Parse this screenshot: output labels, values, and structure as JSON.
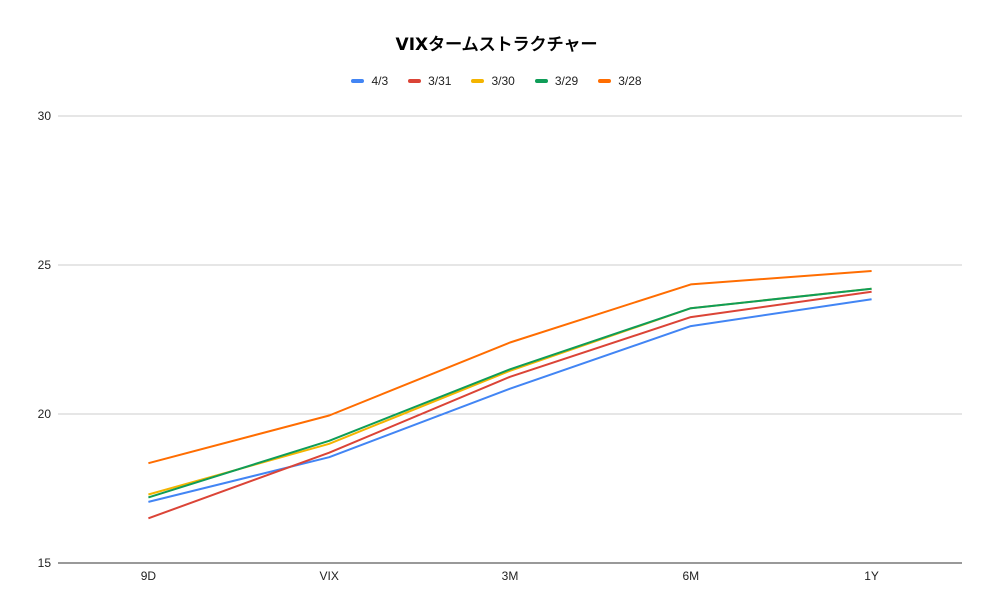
{
  "chart_data": {
    "type": "line",
    "title": "VIXタームストラクチャー",
    "categories": [
      "9D",
      "VIX",
      "3M",
      "6M",
      "1Y"
    ],
    "ylim": [
      15,
      30
    ],
    "yticks": [
      "15",
      "20",
      "25",
      "30"
    ],
    "grid": true,
    "legend_position": "top-center",
    "series": [
      {
        "name": "4/3",
        "color": "#4285f4",
        "values": [
          17.05,
          18.55,
          20.85,
          22.95,
          23.85
        ]
      },
      {
        "name": "3/31",
        "color": "#db4437",
        "values": [
          16.5,
          18.7,
          21.25,
          23.25,
          24.1
        ]
      },
      {
        "name": "3/30",
        "color": "#f4b400",
        "values": [
          17.3,
          19.0,
          21.45,
          23.55,
          24.2
        ]
      },
      {
        "name": "3/29",
        "color": "#0f9d58",
        "values": [
          17.2,
          19.1,
          21.5,
          23.55,
          24.2
        ]
      },
      {
        "name": "3/28",
        "color": "#ff6d01",
        "values": [
          18.35,
          19.95,
          22.4,
          24.35,
          24.8
        ]
      }
    ]
  }
}
